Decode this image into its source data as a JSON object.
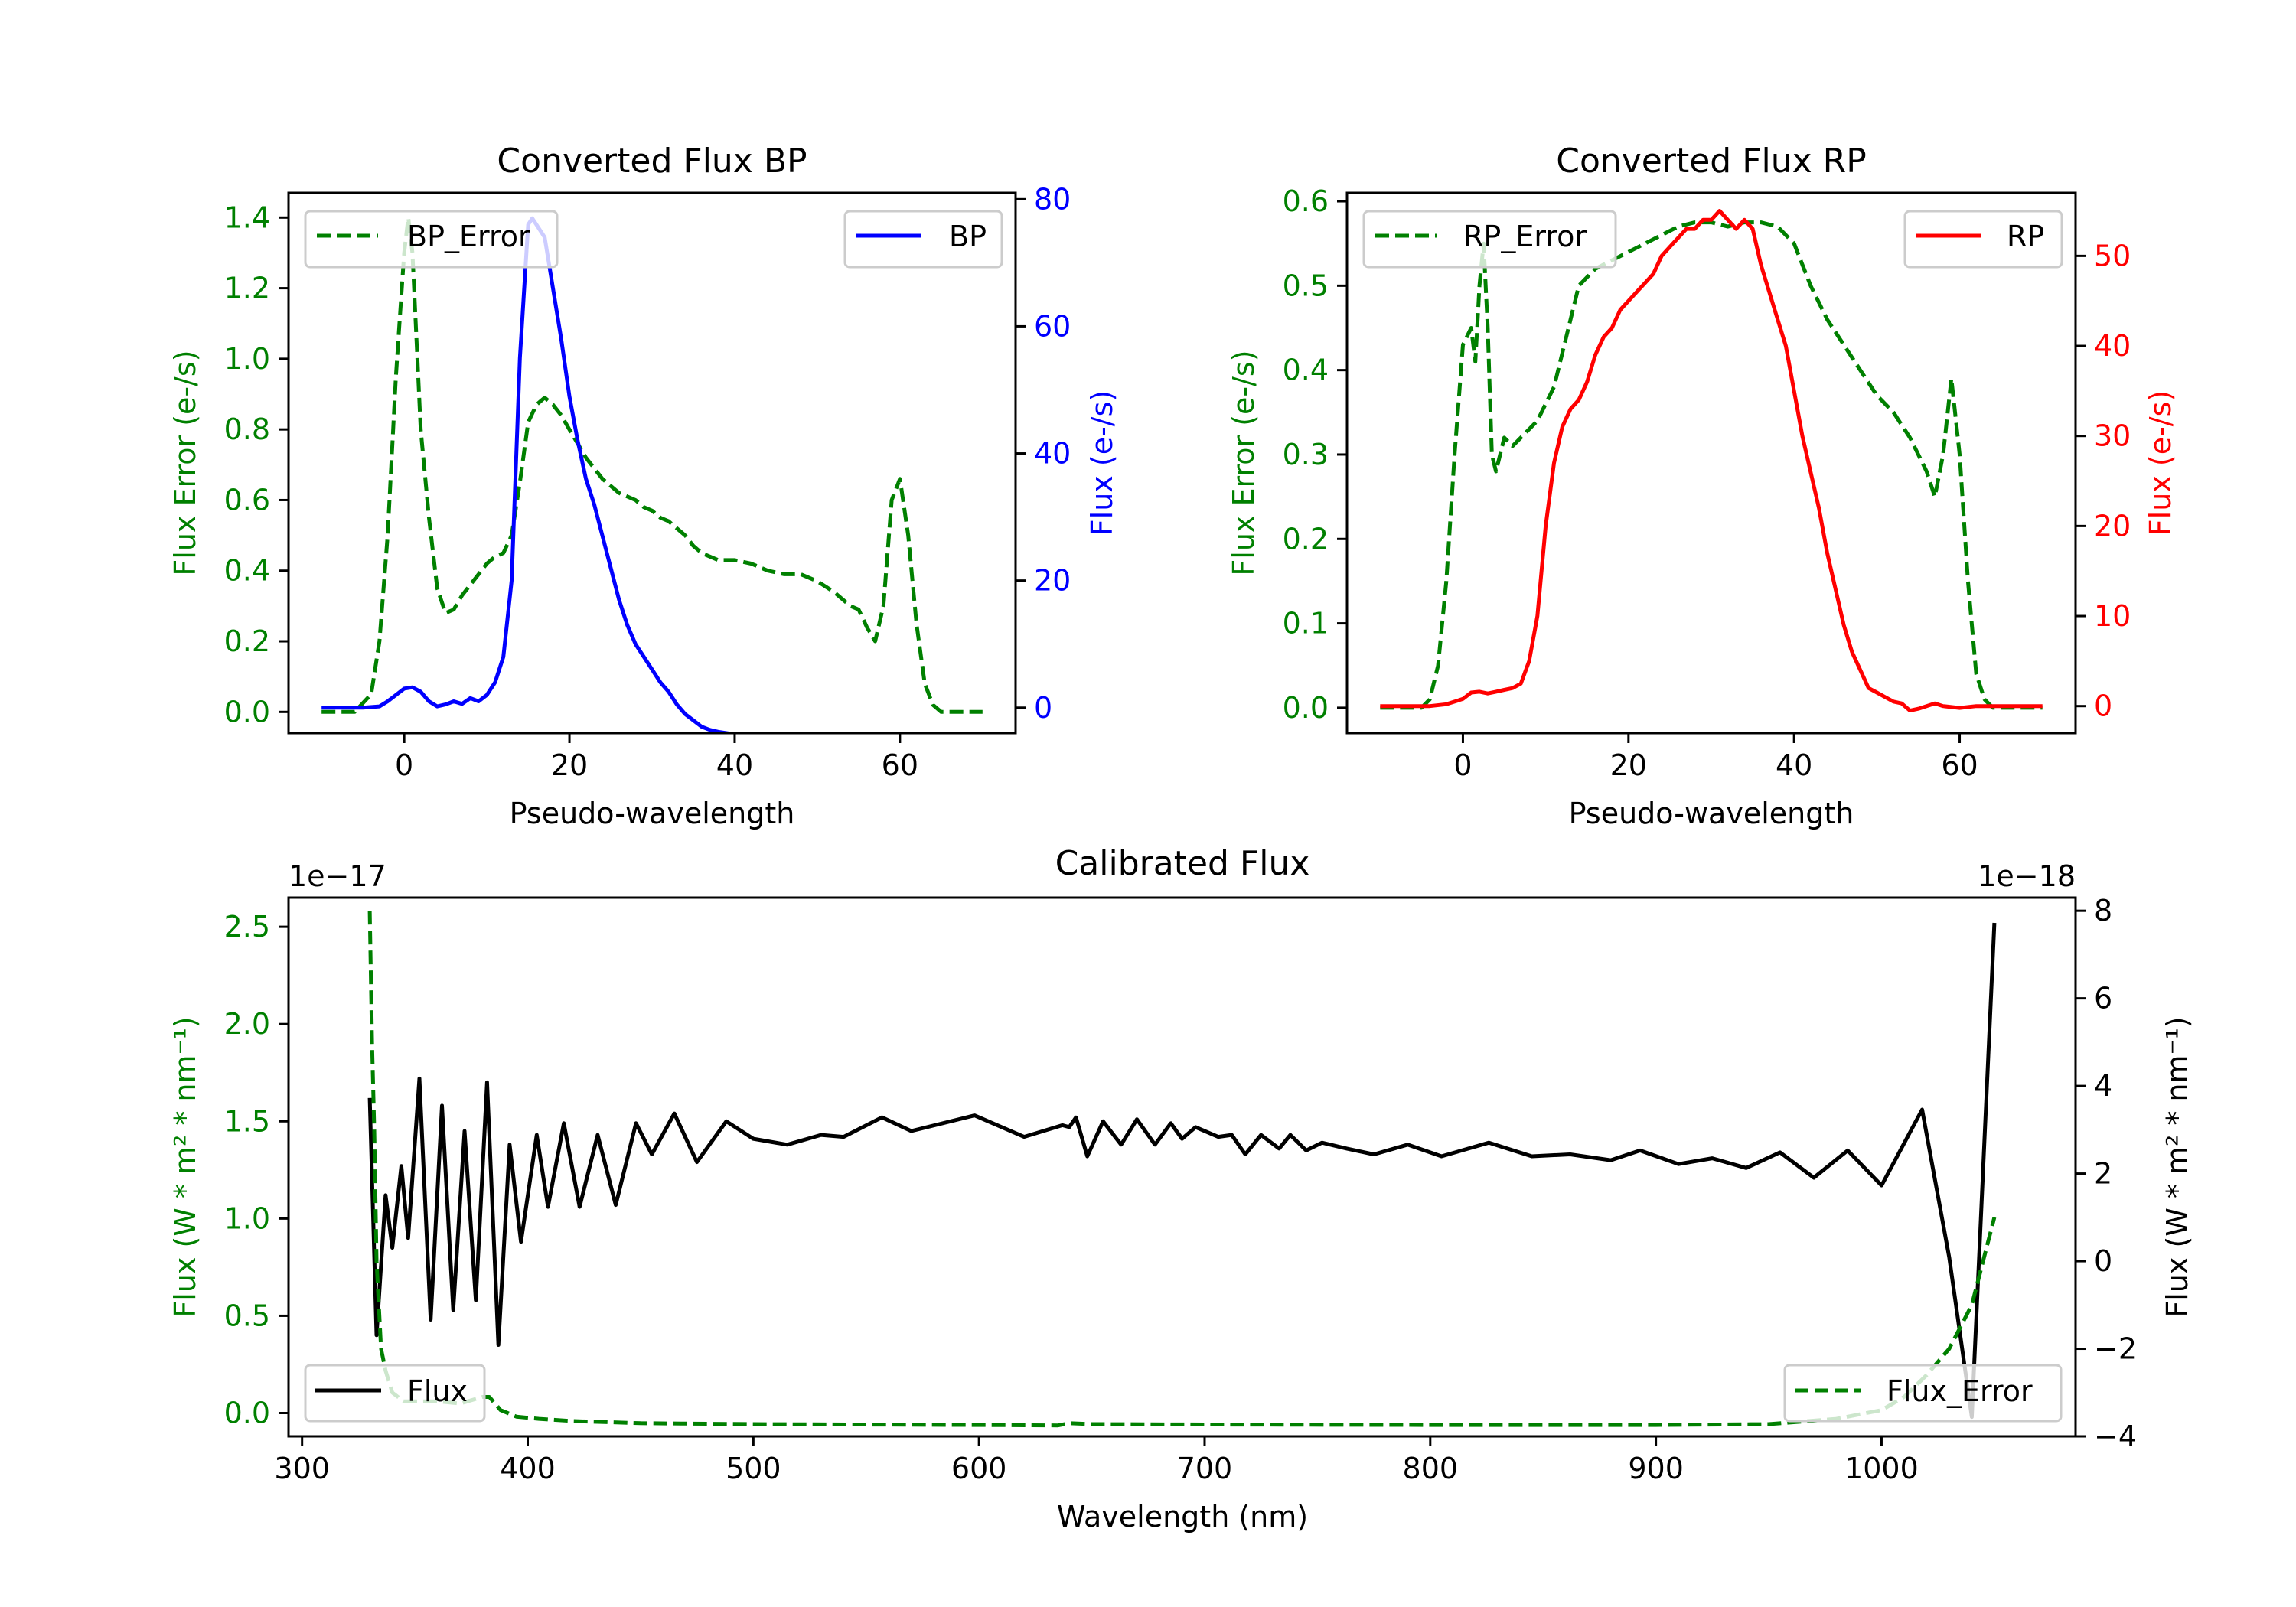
{
  "chart_data": [
    {
      "type": "line",
      "title": "Converted Flux BP",
      "xlabel": "Pseudo-wavelength",
      "ylabel_left": "Flux Error (e-/s)",
      "ylabel_right": "Flux (e-/s)",
      "xlim": [
        -14,
        74
      ],
      "xticks": [
        0,
        20,
        40,
        60
      ],
      "ylim_left": [
        -0.06,
        1.47
      ],
      "yticks_left": [
        "0.0",
        "0.2",
        "0.4",
        "0.6",
        "0.8",
        "1.0",
        "1.2",
        "1.4"
      ],
      "ylim_right": [
        -4,
        81
      ],
      "yticks_right": [
        "0",
        "20",
        "40",
        "60",
        "80"
      ],
      "legend_left": {
        "label": "BP_Error",
        "position": "top-left"
      },
      "legend_right": {
        "label": "BP",
        "position": "top-right"
      },
      "series": [
        {
          "name": "BP_Error",
          "axis": "left",
          "color": "#008000",
          "style": "dashed",
          "x": [
            -10,
            -6,
            -4,
            -3,
            -2,
            -1,
            0,
            0.5,
            1,
            2,
            3,
            4,
            5,
            6,
            7,
            8,
            9,
            10,
            11,
            12,
            13,
            14,
            15,
            16,
            17,
            18,
            19,
            20,
            21,
            22,
            23,
            24,
            25,
            26,
            27,
            28,
            29,
            30,
            31,
            32,
            33,
            34,
            35,
            36,
            37,
            38,
            40,
            42,
            44,
            46,
            48,
            50,
            52,
            54,
            55,
            56,
            57,
            58,
            59,
            60,
            61,
            62,
            63,
            64,
            65,
            66,
            70
          ],
          "y": [
            0,
            0,
            0.05,
            0.2,
            0.5,
            0.95,
            1.3,
            1.4,
            1.3,
            0.8,
            0.55,
            0.35,
            0.28,
            0.29,
            0.33,
            0.36,
            0.39,
            0.42,
            0.44,
            0.45,
            0.5,
            0.65,
            0.82,
            0.87,
            0.89,
            0.87,
            0.84,
            0.8,
            0.76,
            0.72,
            0.69,
            0.66,
            0.64,
            0.62,
            0.61,
            0.6,
            0.58,
            0.57,
            0.55,
            0.54,
            0.52,
            0.5,
            0.47,
            0.45,
            0.44,
            0.43,
            0.43,
            0.42,
            0.4,
            0.39,
            0.39,
            0.37,
            0.34,
            0.3,
            0.29,
            0.24,
            0.2,
            0.3,
            0.6,
            0.66,
            0.5,
            0.25,
            0.08,
            0.02,
            0,
            0,
            0
          ]
        },
        {
          "name": "BP",
          "axis": "right",
          "color": "#0000ff",
          "style": "solid",
          "x": [
            -10,
            -5,
            -3,
            -2,
            -1,
            0,
            1,
            2,
            3,
            4,
            5,
            6,
            7,
            8,
            9,
            10,
            11,
            12,
            13,
            14,
            15,
            15.5,
            16,
            17,
            18,
            19,
            20,
            21,
            22,
            23,
            24,
            25,
            26,
            27,
            28,
            29,
            30,
            31,
            32,
            33,
            34,
            35,
            36,
            37,
            38,
            39,
            40,
            42,
            44,
            46,
            48,
            50,
            52,
            54,
            56,
            58,
            60,
            62,
            64,
            66,
            70
          ],
          "y": [
            0,
            0,
            0.2,
            1,
            2,
            3,
            3.2,
            2.5,
            1,
            0.2,
            0.5,
            1,
            0.6,
            1.5,
            1,
            2,
            4,
            8,
            20,
            55,
            76,
            77,
            76,
            74,
            66,
            58,
            49,
            42,
            36,
            32,
            27,
            22,
            17,
            13,
            10,
            8,
            6,
            4,
            2.5,
            0.5,
            -1,
            -2,
            -3,
            -3.5,
            -3.8,
            -4,
            -4.2,
            -4.5,
            -4.8,
            -5.3,
            -5.6,
            -5.8,
            -6,
            -6.1,
            -6.1,
            -6.3,
            -6.5,
            -6.5,
            -6.5,
            -6.5,
            -6.5
          ]
        }
      ]
    },
    {
      "type": "line",
      "title": "Converted Flux RP",
      "xlabel": "Pseudo-wavelength",
      "ylabel_left": "Flux Error (e-/s)",
      "ylabel_right": "Flux (e-/s)",
      "xlim": [
        -14,
        74
      ],
      "xticks": [
        0,
        20,
        40,
        60
      ],
      "ylim_left": [
        -0.03,
        0.61
      ],
      "yticks_left": [
        "0.0",
        "0.1",
        "0.2",
        "0.3",
        "0.4",
        "0.5",
        "0.6"
      ],
      "ylim_right": [
        -3,
        57
      ],
      "yticks_right": [
        "0",
        "10",
        "20",
        "30",
        "40",
        "50"
      ],
      "legend_left": {
        "label": "RP_Error",
        "position": "top-left"
      },
      "legend_right": {
        "label": "RP",
        "position": "top-right"
      },
      "series": [
        {
          "name": "RP_Error",
          "axis": "left",
          "color": "#008000",
          "style": "dashed",
          "x": [
            -10,
            -5,
            -4,
            -3,
            -2,
            -1,
            0,
            1,
            1.5,
            2,
            2.5,
            3,
            3.5,
            4,
            5,
            6,
            7,
            8,
            9,
            10,
            11,
            12,
            13,
            14,
            15,
            16,
            18,
            20,
            22,
            24,
            26,
            28,
            30,
            32,
            34,
            36,
            38,
            40,
            42,
            44,
            46,
            48,
            50,
            52,
            54,
            55,
            56,
            57,
            58,
            59,
            60,
            61,
            62,
            63,
            64,
            65,
            70
          ],
          "y": [
            0,
            0,
            0.01,
            0.05,
            0.15,
            0.3,
            0.43,
            0.45,
            0.41,
            0.5,
            0.55,
            0.45,
            0.3,
            0.28,
            0.32,
            0.31,
            0.32,
            0.33,
            0.34,
            0.36,
            0.38,
            0.42,
            0.46,
            0.5,
            0.51,
            0.52,
            0.53,
            0.54,
            0.55,
            0.56,
            0.57,
            0.575,
            0.575,
            0.57,
            0.575,
            0.575,
            0.57,
            0.55,
            0.5,
            0.46,
            0.43,
            0.4,
            0.37,
            0.35,
            0.32,
            0.3,
            0.28,
            0.25,
            0.3,
            0.39,
            0.3,
            0.15,
            0.04,
            0.01,
            0,
            0,
            0
          ]
        },
        {
          "name": "RP",
          "axis": "right",
          "color": "#ff0000",
          "style": "solid",
          "x": [
            -10,
            -4,
            -2,
            0,
            1,
            2,
            3,
            4,
            5,
            6,
            7,
            8,
            9,
            10,
            11,
            12,
            13,
            14,
            15,
            16,
            17,
            18,
            19,
            20,
            21,
            22,
            23,
            24,
            25,
            26,
            27,
            28,
            29,
            30,
            31,
            32,
            33,
            34,
            35,
            36,
            37,
            38,
            39,
            40,
            41,
            42,
            43,
            44,
            45,
            46,
            47,
            48,
            49,
            50,
            51,
            52,
            53,
            54,
            55,
            56,
            57,
            58,
            60,
            62,
            64,
            70
          ],
          "y": [
            0,
            0,
            0.2,
            0.8,
            1.5,
            1.6,
            1.4,
            1.6,
            1.8,
            2,
            2.5,
            5,
            10,
            20,
            27,
            31,
            33,
            34,
            36,
            39,
            41,
            42,
            44,
            45,
            46,
            47,
            48,
            50,
            51,
            52,
            53,
            53,
            54,
            54,
            55,
            54,
            53,
            54,
            53,
            49,
            46,
            43,
            40,
            35,
            30,
            26,
            22,
            17,
            13,
            9,
            6,
            4,
            2,
            1.5,
            1,
            0.5,
            0.3,
            -0.5,
            -0.3,
            0,
            0.3,
            0,
            -0.2,
            0,
            0,
            0
          ]
        }
      ]
    },
    {
      "type": "line",
      "title": "Calibrated Flux",
      "xlabel": "Wavelength (nm)",
      "ylabel_left": "Flux (W * m² * nm⁻¹)",
      "ylabel_right": "Flux (W * m² * nm⁻¹)",
      "offset_left": "1e−17",
      "offset_right": "1e−18",
      "xlim": [
        294,
        1086
      ],
      "xticks": [
        "300",
        "400",
        "500",
        "600",
        "700",
        "800",
        "900",
        "1000"
      ],
      "ylim_left": [
        -0.12,
        2.65
      ],
      "yticks_left": [
        "0.0",
        "0.5",
        "1.0",
        "1.5",
        "2.0",
        "2.5"
      ],
      "ylim_right": [
        -4,
        8.3
      ],
      "yticks_right": [
        "−4",
        "−2",
        "0",
        "2",
        "4",
        "6",
        "8"
      ],
      "legend_left": {
        "label": "Flux",
        "position": "lower-left"
      },
      "legend_right": {
        "label": "Flux_Error",
        "position": "lower-right"
      },
      "series": [
        {
          "name": "Flux",
          "axis": "left",
          "color": "#000000",
          "style": "solid",
          "x": [
            330,
            333,
            337,
            340,
            344,
            347,
            352,
            357,
            362,
            367,
            372,
            377,
            382,
            387,
            392,
            397,
            404,
            409,
            416,
            423,
            431,
            439,
            448,
            455,
            465,
            475,
            488,
            500,
            515,
            530,
            540,
            557,
            570,
            598,
            620,
            637,
            640,
            643,
            648,
            655,
            663,
            670,
            678,
            685,
            690,
            696,
            706,
            712,
            718,
            725,
            733,
            738,
            745,
            752,
            763,
            775,
            790,
            805,
            826,
            845,
            862,
            880,
            893,
            910,
            925,
            940,
            955,
            970,
            985,
            1000,
            1018,
            1030,
            1040,
            1050
          ],
          "y": [
            1.62,
            0.4,
            1.12,
            0.85,
            1.27,
            0.9,
            1.72,
            0.48,
            1.58,
            0.53,
            1.45,
            0.58,
            1.7,
            0.35,
            1.38,
            0.88,
            1.43,
            1.06,
            1.49,
            1.06,
            1.43,
            1.07,
            1.49,
            1.33,
            1.54,
            1.29,
            1.5,
            1.41,
            1.38,
            1.43,
            1.42,
            1.52,
            1.45,
            1.53,
            1.42,
            1.48,
            1.47,
            1.52,
            1.32,
            1.5,
            1.38,
            1.51,
            1.38,
            1.49,
            1.41,
            1.47,
            1.42,
            1.43,
            1.33,
            1.43,
            1.36,
            1.43,
            1.35,
            1.39,
            1.36,
            1.33,
            1.38,
            1.32,
            1.39,
            1.32,
            1.33,
            1.3,
            1.35,
            1.28,
            1.31,
            1.26,
            1.34,
            1.21,
            1.35,
            1.17,
            1.56,
            0.8,
            -0.02,
            2.52
          ]
        },
        {
          "name": "Flux_Error",
          "axis": "right",
          "color": "#008000",
          "style": "dashed",
          "x": [
            330,
            331,
            332,
            333,
            335,
            337,
            340,
            345,
            350,
            360,
            370,
            380,
            383,
            388,
            395,
            405,
            420,
            450,
            500,
            600,
            635,
            640,
            650,
            700,
            800,
            900,
            950,
            980,
            1000,
            1010,
            1020,
            1030,
            1040,
            1045,
            1050
          ],
          "y": [
            8,
            5,
            3,
            0,
            -2,
            -2.5,
            -3,
            -3.2,
            -3.2,
            -3.2,
            -3.25,
            -3.1,
            -3.1,
            -3.4,
            -3.55,
            -3.6,
            -3.65,
            -3.7,
            -3.72,
            -3.74,
            -3.75,
            -3.7,
            -3.72,
            -3.73,
            -3.74,
            -3.74,
            -3.72,
            -3.6,
            -3.4,
            -3.1,
            -2.6,
            -2,
            -1,
            0,
            1
          ]
        }
      ]
    }
  ]
}
